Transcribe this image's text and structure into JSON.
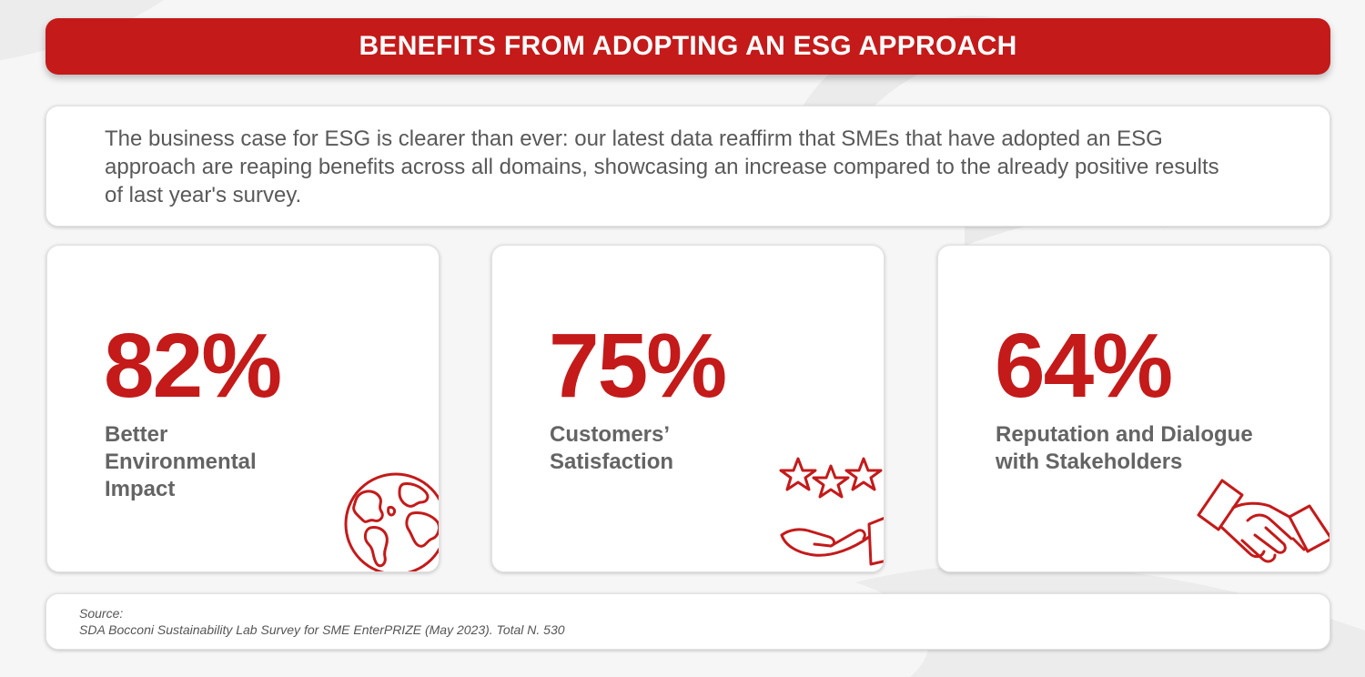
{
  "banner": {
    "title": "BENEFITS FROM ADOPTING AN ESG APPROACH"
  },
  "intro": {
    "text": "The business case for ESG is clearer than ever: our latest data reaffirm that SMEs that have adopted an ESG approach are reaping benefits across all domains, showcasing an increase compared to the already positive results of last year's survey."
  },
  "cards": [
    {
      "value": "82%",
      "label": "Better Environmental Impact",
      "icon": "globe-icon"
    },
    {
      "value": "75%",
      "label": "Customers’ Satisfaction",
      "icon": "stars-hand-icon"
    },
    {
      "value": "64%",
      "label": "Reputation and Dialogue with Stakeholders",
      "icon": "handshake-icon"
    }
  ],
  "source": {
    "heading": "Source:",
    "text": "SDA Bocconi Sustainability Lab Survey for SME EnterPRIZE (May 2023). Total N. 530"
  },
  "colors": {
    "accent": "#c41a1a",
    "text_gray": "#646464",
    "background": "#f6f6f6"
  }
}
